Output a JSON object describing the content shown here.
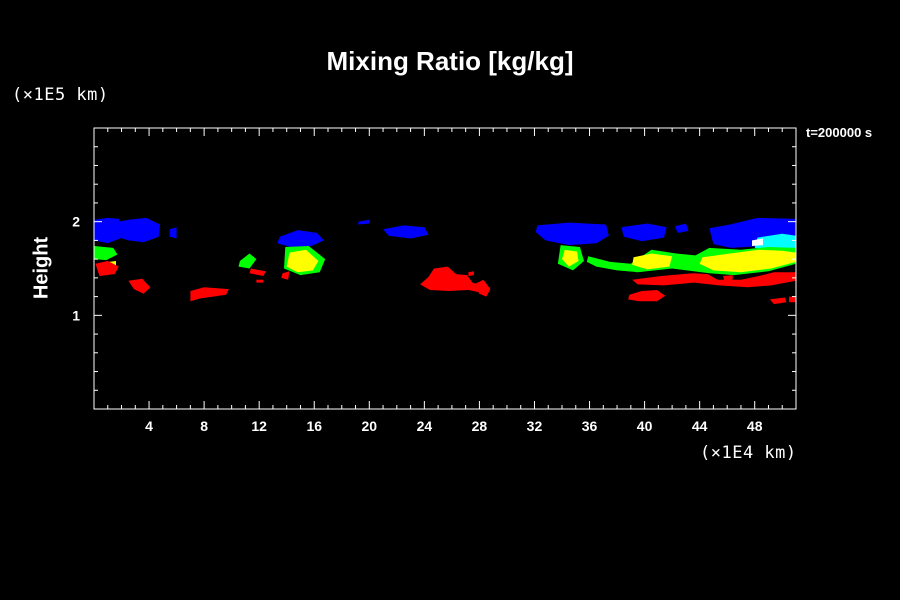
{
  "chart_data": {
    "type": "heatmap",
    "title": "Mixing Ratio [kg/kg]",
    "ylabel": "Height",
    "xlabel": "",
    "x_unit": "(×1E4 km)",
    "y_unit": "(×1E5 km)",
    "annotation": "t=200000 s",
    "xlim": [
      0,
      51
    ],
    "ylim": [
      0,
      3
    ],
    "x_ticks": [
      4,
      8,
      12,
      16,
      20,
      24,
      28,
      32,
      36,
      40,
      44,
      48
    ],
    "y_ticks": [
      1,
      2
    ],
    "grid": false,
    "colors": {
      "blue": "#0000ff",
      "cyan": "#00ffff",
      "green": "#00ff00",
      "yellow": "#ffff00",
      "red": "#ff0000",
      "white": "#ffffff"
    },
    "regions": [
      {
        "color": "blue",
        "points": [
          [
            0,
            2.02
          ],
          [
            1,
            2.04
          ],
          [
            1.8,
            2.03
          ],
          [
            2,
            1.93
          ],
          [
            1.9,
            1.82
          ],
          [
            1,
            1.77
          ],
          [
            0,
            1.8
          ]
        ]
      },
      {
        "color": "blue",
        "points": [
          [
            1.1,
            1.98
          ],
          [
            2.5,
            2.02
          ],
          [
            3.8,
            2.04
          ],
          [
            4.8,
            1.97
          ],
          [
            4.7,
            1.84
          ],
          [
            3.6,
            1.78
          ],
          [
            2.5,
            1.8
          ],
          [
            1.4,
            1.85
          ]
        ]
      },
      {
        "color": "blue",
        "points": [
          [
            5.5,
            1.92
          ],
          [
            6,
            1.94
          ],
          [
            6,
            1.82
          ],
          [
            5.5,
            1.84
          ]
        ]
      },
      {
        "color": "blue",
        "points": [
          [
            13.5,
            1.84
          ],
          [
            14.8,
            1.91
          ],
          [
            16.2,
            1.88
          ],
          [
            16.7,
            1.8
          ],
          [
            15.8,
            1.74
          ],
          [
            14.3,
            1.73
          ],
          [
            13.3,
            1.77
          ]
        ]
      },
      {
        "color": "blue",
        "points": [
          [
            19.2,
            2.0
          ],
          [
            20,
            2.02
          ],
          [
            20,
            1.98
          ],
          [
            19.2,
            1.97
          ]
        ]
      },
      {
        "color": "blue",
        "points": [
          [
            21,
            1.92
          ],
          [
            22.5,
            1.96
          ],
          [
            24,
            1.94
          ],
          [
            24.3,
            1.86
          ],
          [
            23,
            1.82
          ],
          [
            21.4,
            1.85
          ]
        ]
      },
      {
        "color": "blue",
        "points": [
          [
            32.2,
            1.96
          ],
          [
            34.5,
            1.99
          ],
          [
            37.2,
            1.97
          ],
          [
            37.4,
            1.85
          ],
          [
            36.5,
            1.77
          ],
          [
            34.5,
            1.75
          ],
          [
            32.8,
            1.8
          ],
          [
            32.1,
            1.89
          ]
        ]
      },
      {
        "color": "blue",
        "points": [
          [
            38.3,
            1.94
          ],
          [
            40.2,
            1.98
          ],
          [
            41.6,
            1.94
          ],
          [
            41.4,
            1.83
          ],
          [
            39.8,
            1.79
          ],
          [
            38.5,
            1.84
          ]
        ]
      },
      {
        "color": "blue",
        "points": [
          [
            42.2,
            1.95
          ],
          [
            43,
            1.98
          ],
          [
            43.2,
            1.9
          ],
          [
            42.4,
            1.88
          ]
        ]
      },
      {
        "color": "blue",
        "points": [
          [
            44.7,
            1.93
          ],
          [
            46.2,
            1.97
          ],
          [
            48.2,
            2.04
          ],
          [
            51,
            2.03
          ],
          [
            51,
            1.78
          ],
          [
            48.5,
            1.74
          ],
          [
            46.3,
            1.72
          ],
          [
            45,
            1.76
          ]
        ]
      },
      {
        "color": "cyan",
        "points": [
          [
            48.2,
            1.83
          ],
          [
            50,
            1.87
          ],
          [
            51,
            1.85
          ],
          [
            51,
            1.72
          ],
          [
            49.5,
            1.69
          ],
          [
            48,
            1.72
          ]
        ]
      },
      {
        "color": "white",
        "points": [
          [
            47.8,
            1.8
          ],
          [
            48.6,
            1.82
          ],
          [
            48.6,
            1.75
          ],
          [
            47.8,
            1.74
          ]
        ]
      },
      {
        "color": "green",
        "points": [
          [
            0,
            1.74
          ],
          [
            1.4,
            1.72
          ],
          [
            1.7,
            1.65
          ],
          [
            0.9,
            1.59
          ],
          [
            0,
            1.6
          ]
        ]
      },
      {
        "color": "green",
        "points": [
          [
            10.6,
            1.58
          ],
          [
            11.3,
            1.66
          ],
          [
            11.8,
            1.6
          ],
          [
            11.3,
            1.5
          ],
          [
            10.5,
            1.52
          ]
        ]
      },
      {
        "color": "green",
        "points": [
          [
            13.9,
            1.73
          ],
          [
            15.6,
            1.74
          ],
          [
            16.8,
            1.6
          ],
          [
            16.4,
            1.46
          ],
          [
            15,
            1.43
          ],
          [
            13.8,
            1.5
          ]
        ]
      },
      {
        "color": "green",
        "points": [
          [
            33.9,
            1.75
          ],
          [
            35.3,
            1.73
          ],
          [
            35.6,
            1.58
          ],
          [
            34.8,
            1.48
          ],
          [
            33.7,
            1.55
          ]
        ]
      },
      {
        "color": "green",
        "points": [
          [
            35.9,
            1.63
          ],
          [
            37.5,
            1.57
          ],
          [
            39,
            1.55
          ],
          [
            40.5,
            1.7
          ],
          [
            42.3,
            1.66
          ],
          [
            43.7,
            1.64
          ],
          [
            44.7,
            1.72
          ],
          [
            47,
            1.7
          ],
          [
            49,
            1.73
          ],
          [
            51,
            1.72
          ],
          [
            51,
            1.55
          ],
          [
            49,
            1.47
          ],
          [
            46.5,
            1.43
          ],
          [
            44.7,
            1.45
          ],
          [
            42,
            1.5
          ],
          [
            39.5,
            1.46
          ],
          [
            38,
            1.48
          ],
          [
            36.5,
            1.52
          ],
          [
            35.8,
            1.57
          ]
        ]
      },
      {
        "color": "yellow",
        "points": [
          [
            14.2,
            1.67
          ],
          [
            15.4,
            1.7
          ],
          [
            16.3,
            1.58
          ],
          [
            15.9,
            1.48
          ],
          [
            14.8,
            1.46
          ],
          [
            14,
            1.52
          ]
        ]
      },
      {
        "color": "yellow",
        "points": [
          [
            34.2,
            1.7
          ],
          [
            35.1,
            1.68
          ],
          [
            35.2,
            1.58
          ],
          [
            34.5,
            1.52
          ],
          [
            34,
            1.6
          ]
        ]
      },
      {
        "color": "yellow",
        "points": [
          [
            39.2,
            1.62
          ],
          [
            40.5,
            1.66
          ],
          [
            42,
            1.63
          ],
          [
            41.8,
            1.52
          ],
          [
            40.2,
            1.49
          ],
          [
            39.1,
            1.54
          ]
        ]
      },
      {
        "color": "yellow",
        "points": [
          [
            44.2,
            1.62
          ],
          [
            46.2,
            1.66
          ],
          [
            48.3,
            1.7
          ],
          [
            50,
            1.69
          ],
          [
            51,
            1.67
          ],
          [
            51,
            1.57
          ],
          [
            49.2,
            1.5
          ],
          [
            47,
            1.46
          ],
          [
            45,
            1.48
          ],
          [
            44,
            1.55
          ]
        ]
      },
      {
        "color": "yellow",
        "points": [
          [
            1.1,
            1.57
          ],
          [
            1.6,
            1.58
          ],
          [
            1.6,
            1.5
          ],
          [
            1.1,
            1.5
          ]
        ]
      },
      {
        "color": "red",
        "points": [
          [
            0.1,
            1.55
          ],
          [
            1,
            1.58
          ],
          [
            1.8,
            1.52
          ],
          [
            1.5,
            1.44
          ],
          [
            0.4,
            1.42
          ]
        ]
      },
      {
        "color": "red",
        "points": [
          [
            2.5,
            1.37
          ],
          [
            3.5,
            1.39
          ],
          [
            4.1,
            1.3
          ],
          [
            3.6,
            1.23
          ],
          [
            2.9,
            1.28
          ]
        ]
      },
      {
        "color": "red",
        "points": [
          [
            7,
            1.26
          ],
          [
            8,
            1.3
          ],
          [
            9.8,
            1.28
          ],
          [
            9.6,
            1.22
          ],
          [
            7.7,
            1.18
          ],
          [
            7,
            1.15
          ]
        ]
      },
      {
        "color": "red",
        "points": [
          [
            11.4,
            1.5
          ],
          [
            12.5,
            1.47
          ],
          [
            12.3,
            1.42
          ],
          [
            11.3,
            1.45
          ]
        ]
      },
      {
        "color": "red",
        "points": [
          [
            13.7,
            1.45
          ],
          [
            14.2,
            1.47
          ],
          [
            14.1,
            1.38
          ],
          [
            13.6,
            1.4
          ]
        ]
      },
      {
        "color": "red",
        "points": [
          [
            11.8,
            1.38
          ],
          [
            12.3,
            1.38
          ],
          [
            12.3,
            1.35
          ],
          [
            11.8,
            1.35
          ]
        ]
      },
      {
        "color": "red",
        "points": [
          [
            24.7,
            1.5
          ],
          [
            25.7,
            1.52
          ],
          [
            26.3,
            1.44
          ],
          [
            27.1,
            1.43
          ],
          [
            27.5,
            1.35
          ],
          [
            28.1,
            1.32
          ],
          [
            28.2,
            1.24
          ],
          [
            27.2,
            1.27
          ],
          [
            25.8,
            1.26
          ],
          [
            24.4,
            1.27
          ],
          [
            23.7,
            1.33
          ],
          [
            24.3,
            1.41
          ]
        ]
      },
      {
        "color": "red",
        "points": [
          [
            27.6,
            1.33
          ],
          [
            28.3,
            1.38
          ],
          [
            28.8,
            1.28
          ],
          [
            28.5,
            1.2
          ],
          [
            28,
            1.23
          ]
        ]
      },
      {
        "color": "red",
        "points": [
          [
            27.2,
            1.46
          ],
          [
            27.6,
            1.47
          ],
          [
            27.6,
            1.43
          ],
          [
            27.2,
            1.42
          ]
        ]
      },
      {
        "color": "red",
        "points": [
          [
            39.1,
            1.38
          ],
          [
            41.2,
            1.42
          ],
          [
            43.5,
            1.45
          ],
          [
            44.6,
            1.44
          ],
          [
            45.3,
            1.38
          ],
          [
            47,
            1.38
          ],
          [
            48.3,
            1.42
          ],
          [
            49.4,
            1.46
          ],
          [
            51,
            1.46
          ],
          [
            51,
            1.37
          ],
          [
            49.2,
            1.32
          ],
          [
            47.5,
            1.3
          ],
          [
            45.4,
            1.32
          ],
          [
            43.6,
            1.35
          ],
          [
            41.4,
            1.32
          ],
          [
            39.5,
            1.33
          ]
        ]
      },
      {
        "color": "red",
        "points": [
          [
            38.9,
            1.22
          ],
          [
            39.8,
            1.26
          ],
          [
            40.9,
            1.27
          ],
          [
            41.5,
            1.21
          ],
          [
            40.9,
            1.15
          ],
          [
            39.6,
            1.15
          ],
          [
            38.8,
            1.17
          ]
        ]
      },
      {
        "color": "red",
        "points": [
          [
            49.1,
            1.17
          ],
          [
            50.2,
            1.19
          ],
          [
            50.3,
            1.14
          ],
          [
            49.4,
            1.12
          ]
        ]
      },
      {
        "color": "red",
        "points": [
          [
            50.5,
            1.2
          ],
          [
            51,
            1.2
          ],
          [
            51,
            1.14
          ],
          [
            50.5,
            1.14
          ]
        ]
      },
      {
        "color": "red",
        "points": [
          [
            45.7,
            1.42
          ],
          [
            46.4,
            1.43
          ],
          [
            46.4,
            1.38
          ],
          [
            45.8,
            1.37
          ]
        ]
      }
    ]
  }
}
